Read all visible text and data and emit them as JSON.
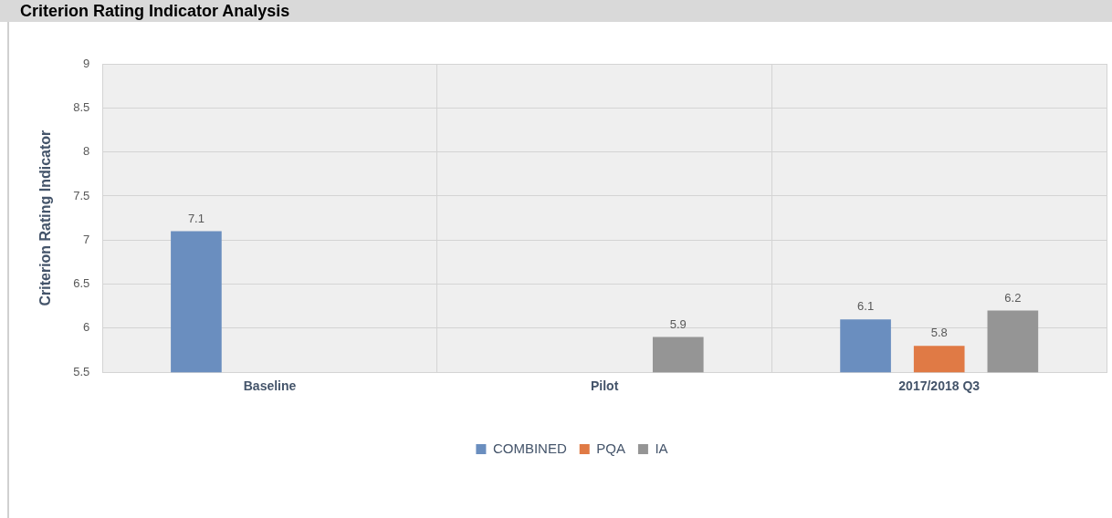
{
  "chart_data": {
    "type": "bar",
    "title": "Criterion Rating Indicator Analysis",
    "ylabel": "Criterion Rating Indicator",
    "categories": [
      "Baseline",
      "Pilot",
      "2017/2018 Q3"
    ],
    "series": [
      {
        "name": "COMBINED",
        "color": "#6a8ebf",
        "values": [
          7.1,
          null,
          6.1
        ]
      },
      {
        "name": "PQA",
        "color": "#e07a45",
        "values": [
          null,
          null,
          5.8
        ]
      },
      {
        "name": "IA",
        "color": "#959595",
        "values": [
          null,
          5.9,
          6.2
        ]
      }
    ],
    "ylim": [
      5.5,
      9
    ],
    "yticks": [
      5.5,
      6,
      6.5,
      7,
      7.5,
      8,
      8.5,
      9
    ],
    "grid": true,
    "legend": "bottom",
    "data_labels": true
  }
}
